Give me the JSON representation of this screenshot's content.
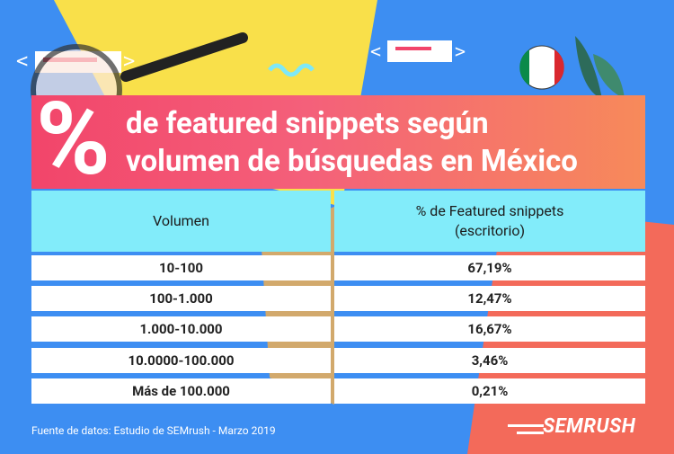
{
  "title": {
    "symbol": "%",
    "lines": [
      "de featured snippets según",
      "volumen de búsquedas en México"
    ]
  },
  "table": {
    "header": [
      [
        "Volumen"
      ],
      [
        "% de Featured snippets",
        "(escritorio)"
      ]
    ],
    "rows": [
      [
        "10-100",
        "67,19%"
      ],
      [
        "100-1.000",
        "12,47%"
      ],
      [
        "1.000-10.000",
        "16,67%"
      ],
      [
        "10.0000-100.000",
        "3,46%"
      ],
      [
        "Más de 100.000",
        "0,21%"
      ]
    ]
  },
  "footer": {
    "source": "Fuente de datos: Estudio de SEMrush - Marzo 2019",
    "logo": "SEMRUSH"
  }
}
